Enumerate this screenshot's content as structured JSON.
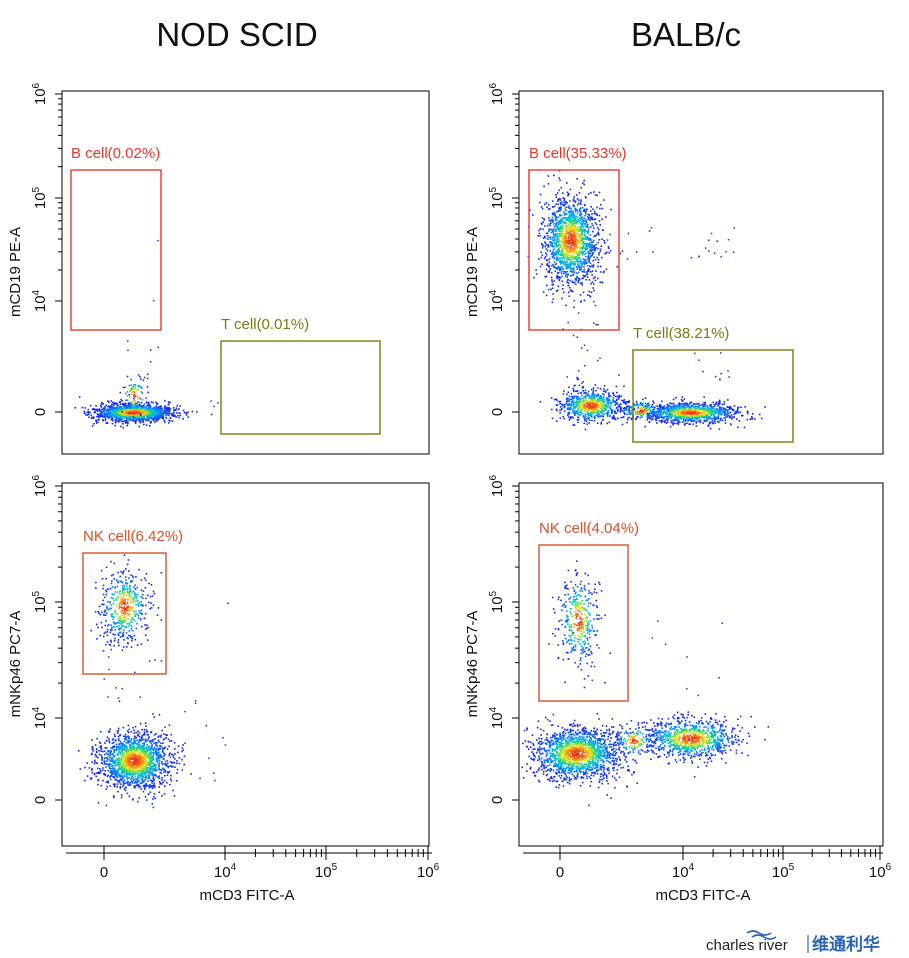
{
  "columns": [
    {
      "title": "NOD SCID"
    },
    {
      "title": "BALB/c"
    }
  ],
  "axes": {
    "xlabel": "mCD3 FITC-A",
    "ylabel_top": "mCD19 PE-A",
    "ylabel_bottom": "mNKp46 PC7-A",
    "x_ticks": [
      "0",
      "10",
      "10",
      "10"
    ],
    "x_tick_exponents": [
      "",
      "4",
      "5",
      "6"
    ],
    "y_ticks": [
      "0",
      "10",
      "10",
      "10"
    ],
    "y_tick_exponents": [
      "",
      "4",
      "5",
      "6"
    ]
  },
  "gates": {
    "nod_b": "B cell(0.02%)",
    "nod_t": "T cell(0.01%)",
    "balb_b": "B cell(35.33%)",
    "balb_t": "T cell(38.21%)",
    "nod_nk": "NK cell(6.42%)",
    "balb_nk": "NK cell(4.04%)"
  },
  "colors": {
    "gate_b": "#e8382b",
    "gate_t": "#7a7a12",
    "gate_nk": "#d9502a",
    "dots": "#1030e0"
  },
  "brand": {
    "name": "charles river",
    "cn": "维通利华"
  },
  "chart_data": [
    {
      "type": "scatter",
      "title": "NOD SCID",
      "xlabel": "mCD3 FITC-A",
      "ylabel": "mCD19 PE-A",
      "x_scale": "logicle",
      "y_scale": "logicle",
      "x_ticks": [
        "0",
        "10^4",
        "10^5",
        "10^6"
      ],
      "y_ticks": [
        "0",
        "10^4",
        "10^5",
        "10^6"
      ],
      "gates": [
        {
          "name": "B cell",
          "percent": 0.02
        },
        {
          "name": "T cell",
          "percent": 0.01
        }
      ],
      "populations": [
        {
          "name": "non-B/T cluster",
          "x_center": 0,
          "y_center": 0
        }
      ]
    },
    {
      "type": "scatter",
      "title": "BALB/c",
      "xlabel": "mCD3 FITC-A",
      "ylabel": "mCD19 PE-A",
      "x_scale": "logicle",
      "y_scale": "logicle",
      "x_ticks": [
        "0",
        "10^4",
        "10^5",
        "10^6"
      ],
      "y_ticks": [
        "0",
        "10^4",
        "10^5",
        "10^6"
      ],
      "gates": [
        {
          "name": "B cell",
          "percent": 35.33
        },
        {
          "name": "T cell",
          "percent": 38.21
        }
      ],
      "populations": [
        {
          "name": "B cell cluster",
          "x_center": 0,
          "y_center": 35000
        },
        {
          "name": "double-negative cluster",
          "x_center": 500,
          "y_center": 0
        },
        {
          "name": "T cell cluster",
          "x_center": 12000,
          "y_center": 0
        }
      ]
    },
    {
      "type": "scatter",
      "title": "NOD SCID",
      "xlabel": "mCD3 FITC-A",
      "ylabel": "mNKp46 PC7-A",
      "x_scale": "logicle",
      "y_scale": "logicle",
      "x_ticks": [
        "0",
        "10^4",
        "10^5",
        "10^6"
      ],
      "y_ticks": [
        "0",
        "10^4",
        "10^5",
        "10^6"
      ],
      "gates": [
        {
          "name": "NK cell",
          "percent": 6.42
        }
      ],
      "populations": [
        {
          "name": "NK cell cluster",
          "x_center": 0,
          "y_center": 90000
        },
        {
          "name": "NKp46-negative cluster",
          "x_center": 800,
          "y_center": 3000
        }
      ]
    },
    {
      "type": "scatter",
      "title": "BALB/c",
      "xlabel": "mCD3 FITC-A",
      "ylabel": "mNKp46 PC7-A",
      "x_scale": "logicle",
      "y_scale": "logicle",
      "x_ticks": [
        "0",
        "10^4",
        "10^5",
        "10^6"
      ],
      "y_ticks": [
        "0",
        "10^4",
        "10^5",
        "10^6"
      ],
      "gates": [
        {
          "name": "NK cell",
          "percent": 4.04
        }
      ],
      "populations": [
        {
          "name": "NK cell cluster",
          "x_center": 0,
          "y_center": 70000
        },
        {
          "name": "NKp46-negative cluster",
          "x_center": 500,
          "y_center": 4000
        },
        {
          "name": "T cell cluster",
          "x_center": 12000,
          "y_center": 6000
        }
      ]
    }
  ]
}
